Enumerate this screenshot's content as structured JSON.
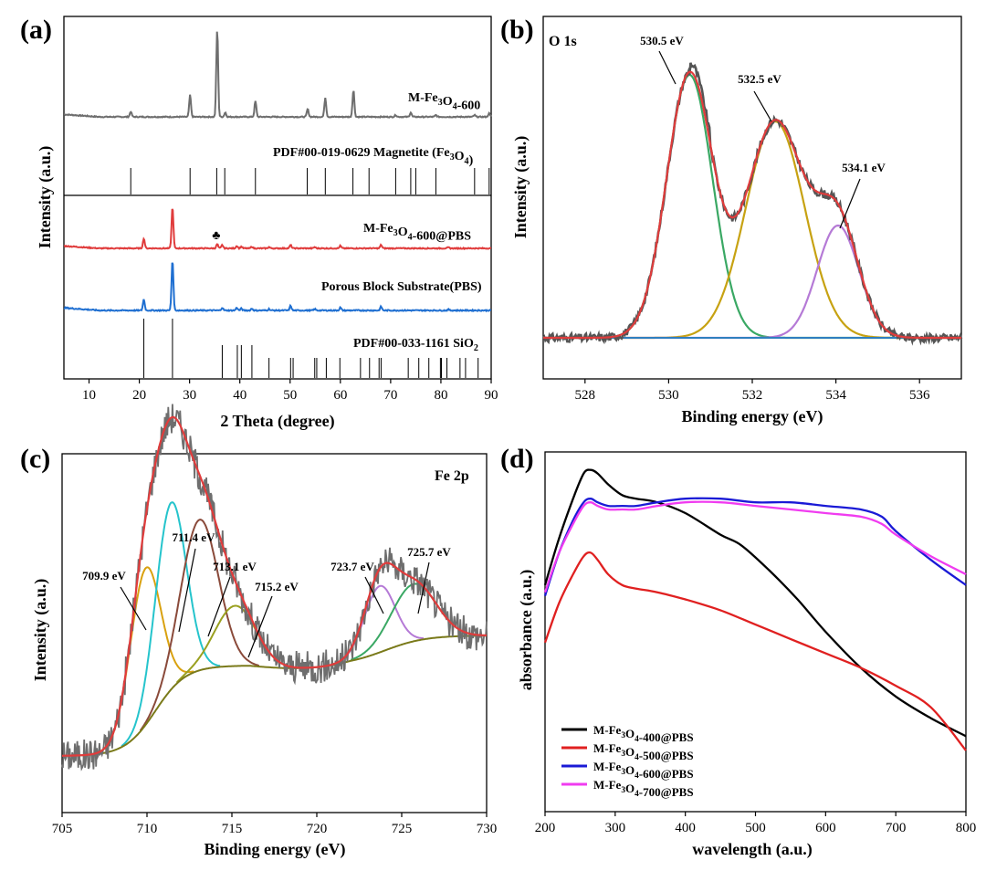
{
  "figure": {
    "panels": [
      {
        "id": "a",
        "panel_label": "(a)",
        "type": "line",
        "xlabel": "2 Theta (degree)",
        "ylabel": "Intensity (a.u.)",
        "xlim": [
          5,
          90
        ],
        "xticks": [
          10,
          20,
          30,
          40,
          50,
          60,
          70,
          80,
          90
        ],
        "traces": [
          {
            "name": "M-Fe3O4-600",
            "label_main": "M-Fe",
            "label_sub1": "3",
            "label_mid": "O",
            "label_sub2": "4",
            "label_tail": "-600",
            "color": "#6e6e6e",
            "peaks": [
              [
                18.3,
                0.06
              ],
              [
                30.1,
                0.25
              ],
              [
                35.5,
                1.0
              ],
              [
                37.1,
                0.05
              ],
              [
                43.1,
                0.18
              ],
              [
                53.5,
                0.09
              ],
              [
                57.0,
                0.22
              ],
              [
                62.6,
                0.31
              ],
              [
                71.0,
                0.02
              ],
              [
                74.0,
                0.05
              ],
              [
                79.0,
                0.02
              ],
              [
                86.7,
                0.02
              ],
              [
                89.6,
                0.04
              ]
            ]
          },
          {
            "name": "PDF#00-019-0629 Magnetite (Fe3O4)",
            "label_main": "PDF#00-019-0629 Magnetite (Fe",
            "label_sub1": "3",
            "label_mid": "O",
            "label_sub2": "4",
            "label_tail": ")",
            "color": "#000000",
            "sticks": [
              18.3,
              30.1,
              35.4,
              37.0,
              43.1,
              53.4,
              57.0,
              62.5,
              65.7,
              71.0,
              74.0,
              75.0,
              79.0,
              86.7,
              89.6
            ]
          },
          {
            "name": "M-Fe3O4-600@PBS",
            "label_main": "M-Fe",
            "label_sub1": "3",
            "label_mid": "O",
            "label_sub2": "4",
            "label_tail": "-600@PBS",
            "color": "#e03c3c",
            "peaks": [
              [
                20.9,
                0.12
              ],
              [
                26.6,
                0.5
              ],
              [
                35.5,
                0.05
              ],
              [
                36.5,
                0.04
              ],
              [
                39.4,
                0.03
              ],
              [
                40.3,
                0.02
              ],
              [
                42.4,
                0.02
              ],
              [
                45.8,
                0.015
              ],
              [
                50.1,
                0.04
              ],
              [
                54.9,
                0.015
              ],
              [
                60.0,
                0.03
              ],
              [
                68.1,
                0.04
              ],
              [
                81.5,
                0.01
              ]
            ],
            "marker": "♣"
          },
          {
            "name": "Porous Block Substrate(PBS)",
            "label_main": "Porous Block Substrate(PBS)",
            "label_sub1": "",
            "label_mid": "",
            "label_sub2": "",
            "label_tail": "",
            "color": "#1f6fd1",
            "peaks": [
              [
                20.9,
                0.12
              ],
              [
                26.6,
                0.55
              ],
              [
                36.5,
                0.03
              ],
              [
                39.4,
                0.03
              ],
              [
                40.3,
                0.02
              ],
              [
                42.4,
                0.02
              ],
              [
                45.8,
                0.015
              ],
              [
                50.1,
                0.05
              ],
              [
                54.9,
                0.015
              ],
              [
                60.0,
                0.03
              ],
              [
                68.1,
                0.04
              ],
              [
                81.5,
                0.01
              ]
            ]
          },
          {
            "name": "PDF#00-033-1161 SiO2",
            "label_main": "PDF#00-033-1161 SiO",
            "label_sub1": "",
            "label_mid": "",
            "label_sub2": "2",
            "label_tail": "",
            "color": "#000000",
            "sticks": [
              20.9,
              26.6,
              36.5,
              39.5,
              40.3,
              42.4,
              45.8,
              50.1,
              50.6,
              54.9,
              55.3,
              57.2,
              59.9,
              64.0,
              65.8,
              67.7,
              68.1,
              73.5,
              75.6,
              77.6,
              79.9,
              80.1,
              81.2,
              83.8,
              84.9,
              87.4
            ]
          }
        ]
      },
      {
        "id": "b",
        "panel_label": "(b)",
        "type": "line",
        "title": "O 1s",
        "xlabel": "Binding energy (eV)",
        "ylabel": "Intensity (a.u.)",
        "xlim": [
          527,
          537
        ],
        "xticks": [
          528,
          530,
          532,
          534,
          536
        ],
        "components": [
          {
            "label": "530.5 eV",
            "center": 530.5,
            "height": 0.96,
            "width": 0.55,
            "color": "#3aa864"
          },
          {
            "label": "532.5 eV",
            "center": 532.55,
            "height": 0.79,
            "width": 0.7,
            "color": "#c7a212"
          },
          {
            "label": "534.1 eV",
            "center": 534.05,
            "height": 0.41,
            "width": 0.5,
            "color": "#b57ad6"
          }
        ],
        "raw_color": "#555555",
        "fit_color": "#e03c3c"
      },
      {
        "id": "c",
        "panel_label": "(c)",
        "type": "line",
        "title": "Fe 2p",
        "xlabel": "Binding energy (eV)",
        "ylabel": "Intensity (a.u.)",
        "xlim": [
          705,
          730
        ],
        "xticks": [
          705,
          710,
          715,
          720,
          725,
          730
        ],
        "components": [
          {
            "label": "709.9 eV",
            "center": 709.9,
            "height": 0.52,
            "width": 0.9,
            "color": "#d9a10f"
          },
          {
            "label": "711.4 eV",
            "center": 711.4,
            "height": 0.62,
            "width": 0.9,
            "color": "#25c4cc"
          },
          {
            "label": "713.1 eV",
            "center": 713.1,
            "height": 0.5,
            "width": 1.1,
            "color": "#8a4a3a"
          },
          {
            "label": "715.2 eV",
            "center": 715.2,
            "height": 0.2,
            "width": 1.2,
            "color": "#9aa020"
          },
          {
            "label": "723.7 eV",
            "center": 723.7,
            "height": 0.22,
            "width": 0.9,
            "color": "#b57ad6"
          },
          {
            "label": "725.7 eV",
            "center": 725.7,
            "height": 0.19,
            "width": 1.3,
            "color": "#3aa864"
          }
        ],
        "raw_color": "#6e6e6e",
        "fit_color": "#e03c3c",
        "background_color": "#7a7a1a"
      },
      {
        "id": "d",
        "panel_label": "(d)",
        "type": "line",
        "xlabel": "wavelength (a.u.)",
        "ylabel": "absorbance (a.u.)",
        "xlim": [
          200,
          800
        ],
        "xticks": [
          200,
          300,
          400,
          500,
          600,
          700,
          800
        ],
        "series": [
          {
            "name": "M-Fe3O4-400@PBS",
            "label_main": "M-Fe",
            "label_sub1": "3",
            "label_mid": "O",
            "label_sub2": "4",
            "label_tail": "-400@PBS",
            "color": "#000000",
            "x": [
              200,
              220,
              240,
              255,
              265,
              275,
              290,
              310,
              330,
              360,
              400,
              450,
              480,
              520,
              560,
              600,
              650,
              700,
              750,
              800
            ],
            "y": [
              0.63,
              0.76,
              0.87,
              0.94,
              0.95,
              0.94,
              0.91,
              0.88,
              0.87,
              0.86,
              0.83,
              0.77,
              0.74,
              0.67,
              0.59,
              0.5,
              0.4,
              0.32,
              0.26,
              0.21
            ]
          },
          {
            "name": "M-Fe3O4-500@PBS",
            "label_main": "M-Fe",
            "label_sub1": "3",
            "label_mid": "O",
            "label_sub2": "4",
            "label_tail": "-500@PBS",
            "color": "#e02020",
            "x": [
              200,
              220,
              240,
              255,
              265,
              275,
              290,
              310,
              330,
              360,
              400,
              450,
              500,
              550,
              600,
              650,
              700,
              750,
              800
            ],
            "y": [
              0.47,
              0.58,
              0.66,
              0.71,
              0.72,
              0.7,
              0.66,
              0.63,
              0.62,
              0.61,
              0.59,
              0.56,
              0.52,
              0.48,
              0.44,
              0.4,
              0.35,
              0.29,
              0.17
            ]
          },
          {
            "name": "M-Fe3O4-600@PBS",
            "label_main": "M-Fe",
            "label_sub1": "3",
            "label_mid": "O",
            "label_sub2": "4",
            "label_tail": "-600@PBS",
            "color": "#1a1ad6",
            "x": [
              200,
              220,
              240,
              255,
              265,
              275,
              290,
              310,
              330,
              360,
              400,
              450,
              500,
              550,
              600,
              650,
              680,
              700,
              750,
              800
            ],
            "y": [
              0.6,
              0.72,
              0.81,
              0.86,
              0.87,
              0.86,
              0.85,
              0.85,
              0.85,
              0.86,
              0.87,
              0.87,
              0.86,
              0.86,
              0.85,
              0.84,
              0.82,
              0.78,
              0.7,
              0.63
            ]
          },
          {
            "name": "M-Fe3O4-700@PBS",
            "label_main": "M-Fe",
            "label_sub1": "3",
            "label_mid": "O",
            "label_sub2": "4",
            "label_tail": "-700@PBS",
            "color": "#f03cf0",
            "x": [
              200,
              220,
              240,
              255,
              265,
              275,
              290,
              310,
              330,
              360,
              400,
              450,
              500,
              550,
              600,
              650,
              680,
              700,
              750,
              800
            ],
            "y": [
              0.61,
              0.72,
              0.8,
              0.85,
              0.86,
              0.85,
              0.84,
              0.84,
              0.84,
              0.85,
              0.86,
              0.86,
              0.85,
              0.84,
              0.83,
              0.82,
              0.8,
              0.77,
              0.71,
              0.66
            ]
          }
        ]
      }
    ]
  },
  "chart_data": [
    {
      "type": "line",
      "panel": "(a)",
      "xlabel": "2 Theta (degree)",
      "ylabel": "Intensity (a.u.)",
      "xlim": [
        5,
        90
      ],
      "series": [
        {
          "name": "M-Fe3O4-600",
          "peak_positions": [
            18.3,
            30.1,
            35.5,
            43.1,
            53.5,
            57.0,
            62.6,
            74.0,
            89.6
          ]
        },
        {
          "name": "PDF#00-019-0629 Magnetite (Fe3O4)",
          "peak_positions": [
            18.3,
            30.1,
            35.4,
            37.0,
            43.1,
            53.4,
            57.0,
            62.5,
            65.7,
            71.0,
            74.0,
            75.0,
            79.0,
            86.7,
            89.6
          ]
        },
        {
          "name": "M-Fe3O4-600@PBS",
          "peak_positions": [
            20.9,
            26.6,
            35.5,
            39.4,
            50.1,
            60.0,
            68.1
          ]
        },
        {
          "name": "Porous Block Substrate(PBS)",
          "peak_positions": [
            20.9,
            26.6,
            39.4,
            50.1,
            60.0,
            68.1
          ]
        },
        {
          "name": "PDF#00-033-1161 SiO2",
          "peak_positions": [
            20.9,
            26.6,
            36.5,
            39.5,
            40.3,
            42.4,
            45.8,
            50.1,
            54.9,
            59.9,
            67.7,
            68.1,
            81.2
          ]
        }
      ]
    },
    {
      "type": "line",
      "panel": "(b)",
      "title": "O 1s",
      "xlabel": "Binding energy (eV)",
      "ylabel": "Intensity (a.u.)",
      "xlim": [
        527,
        537
      ],
      "series": [
        {
          "name": "530.5 eV",
          "center": 530.5
        },
        {
          "name": "532.5 eV",
          "center": 532.5
        },
        {
          "name": "534.1 eV",
          "center": 534.1
        }
      ]
    },
    {
      "type": "line",
      "panel": "(c)",
      "title": "Fe 2p",
      "xlabel": "Binding energy (eV)",
      "ylabel": "Intensity (a.u.)",
      "xlim": [
        705,
        730
      ],
      "series": [
        {
          "name": "709.9 eV",
          "center": 709.9
        },
        {
          "name": "711.4 eV",
          "center": 711.4
        },
        {
          "name": "713.1 eV",
          "center": 713.1
        },
        {
          "name": "715.2 eV",
          "center": 715.2
        },
        {
          "name": "723.7 eV",
          "center": 723.7
        },
        {
          "name": "725.7 eV",
          "center": 725.7
        }
      ]
    },
    {
      "type": "line",
      "panel": "(d)",
      "xlabel": "wavelength (a.u.)",
      "ylabel": "absorbance (a.u.)",
      "xlim": [
        200,
        800
      ],
      "series": [
        {
          "name": "M-Fe3O4-400@PBS",
          "x": [
            200,
            265,
            400,
            500,
            600,
            700,
            800
          ],
          "y": [
            0.63,
            0.95,
            0.83,
            0.71,
            0.5,
            0.32,
            0.21
          ]
        },
        {
          "name": "M-Fe3O4-500@PBS",
          "x": [
            200,
            265,
            400,
            500,
            600,
            700,
            800
          ],
          "y": [
            0.47,
            0.72,
            0.59,
            0.52,
            0.44,
            0.35,
            0.17
          ]
        },
        {
          "name": "M-Fe3O4-600@PBS",
          "x": [
            200,
            265,
            400,
            500,
            600,
            700,
            800
          ],
          "y": [
            0.6,
            0.87,
            0.87,
            0.86,
            0.85,
            0.78,
            0.63
          ]
        },
        {
          "name": "M-Fe3O4-700@PBS",
          "x": [
            200,
            265,
            400,
            500,
            600,
            700,
            800
          ],
          "y": [
            0.61,
            0.86,
            0.86,
            0.85,
            0.83,
            0.77,
            0.66
          ]
        }
      ]
    }
  ]
}
